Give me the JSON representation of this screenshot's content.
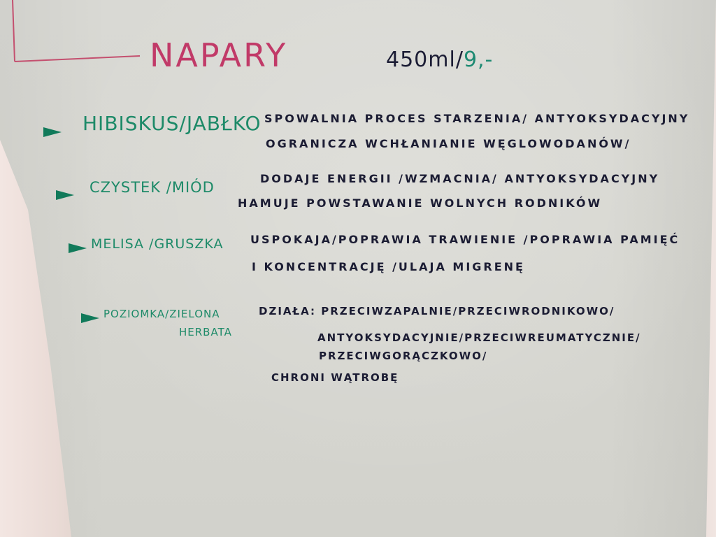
{
  "title": "NAPARY",
  "price": {
    "volume": "450ml/",
    "amount": "9,-"
  },
  "items": [
    {
      "name": "HIBISKUS/JABŁKO",
      "lines": [
        "SPOWALNIA PROCES STARZENIA/ ANTYOKSYDACYJNY",
        "OGRANICZA WCHŁANIANIE WĘGLOWODANÓW/"
      ]
    },
    {
      "name": "CZYSTEK /MIÓD",
      "lines": [
        "DODAJE ENERGII /WZMACNIA/ ANTYOKSYDACYJNY",
        "HAMUJE POWSTAWANIE WOLNYCH RODNIKÓW"
      ]
    },
    {
      "name": "MELISA /GRUSZKA",
      "lines": [
        "USPOKAJA/POPRAWIA TRAWIENIE /POPRAWIA PAMIĘĆ",
        "I KONCENTRACJĘ /ULAJA MIGRENĘ"
      ]
    },
    {
      "name": "POZIOMKA/ZIELONA",
      "name_line2": "HERBATA",
      "lines": [
        "DZIAŁA: PRZECIWZAPALNIE/PRZECIWRODNIKOWO/",
        "ANTYOKSYDACYJNIE/PRZECIWREUMATYCZNIE/",
        "PRZECIWGORĄCZKOWO/",
        "CHRONI WĄTROBĘ"
      ]
    }
  ],
  "colors": {
    "title_pink": "#c13a68",
    "name_green": "#1d8a68",
    "ink_navy": "#1b1c33",
    "paper": "#d8d8d2"
  }
}
